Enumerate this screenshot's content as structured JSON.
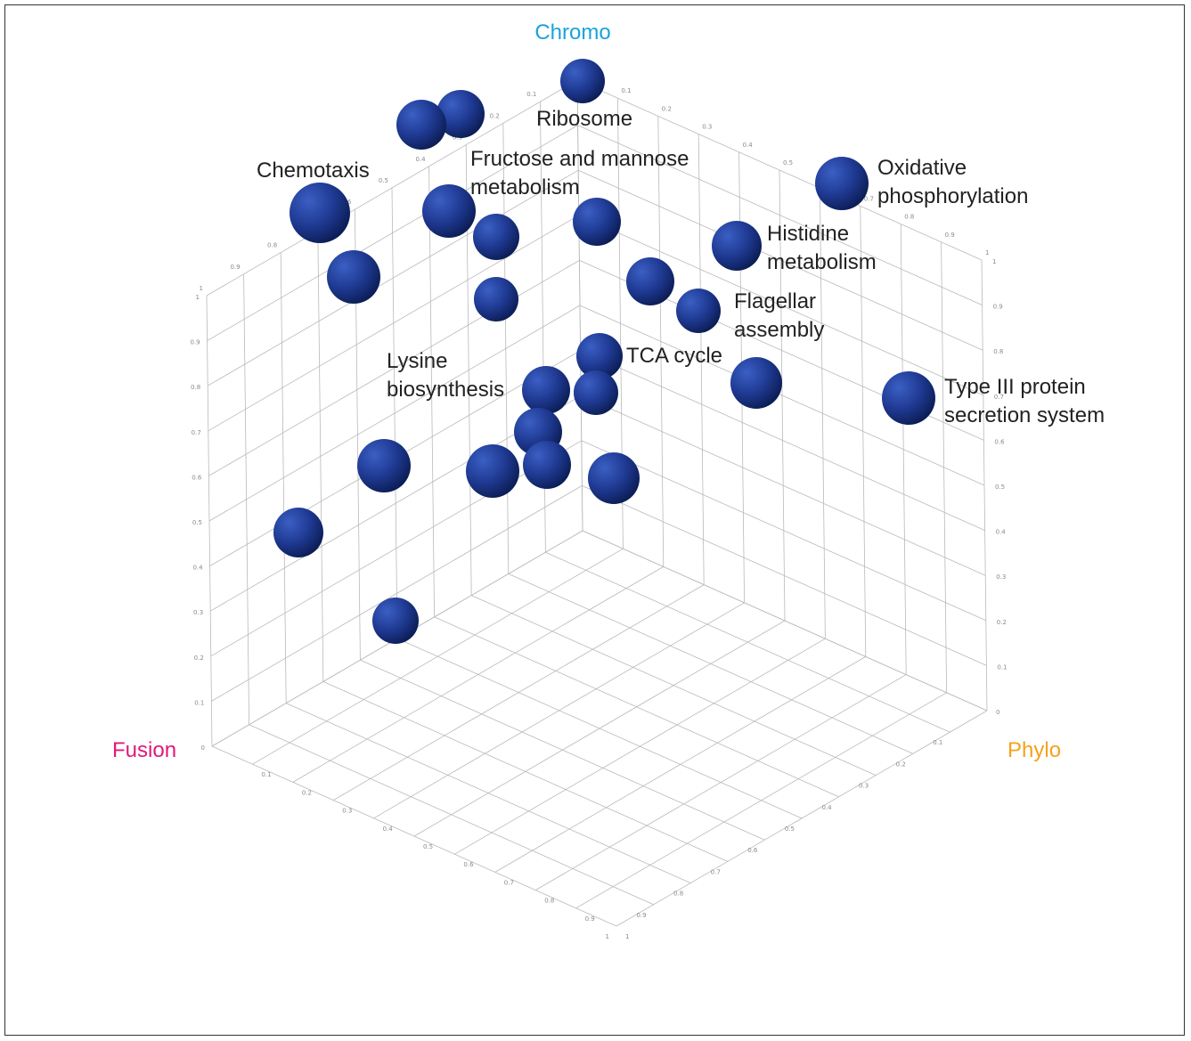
{
  "chart_data": {
    "type": "scatter",
    "dimensions": 3,
    "axes": {
      "chromo": {
        "label": "Chromo",
        "color": "#1aa3dc",
        "range": [
          0,
          1
        ]
      },
      "fusion": {
        "label": "Fusion",
        "color": "#e0197a",
        "range": [
          0,
          1
        ]
      },
      "phylo": {
        "label": "Phylo",
        "color": "#f5a21b",
        "range": [
          0,
          1
        ]
      }
    },
    "ticks": [
      "0.1",
      "0.2",
      "0.3",
      "0.4",
      "0.5",
      "0.6",
      "0.7",
      "0.8",
      "0.9",
      "1"
    ],
    "grid": true,
    "point_color": "#1f3a93",
    "labels": [
      "Ribosome",
      "Chemotaxis",
      "Fructose and mannose\nmetabolism",
      "Oxidative\nphosphorylation",
      "Histidine\nmetabolism",
      "Flagellar\nassembly",
      "TCA cycle",
      "Lysine\nbiosynthesis",
      "Type III protein\nsecretion system"
    ]
  }
}
